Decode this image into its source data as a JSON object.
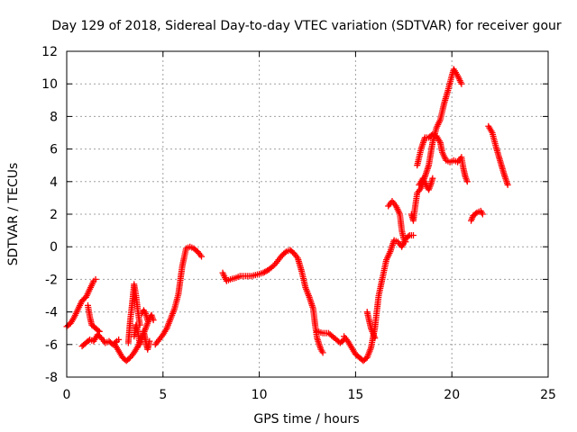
{
  "chart_data": {
    "type": "scatter",
    "title": "Day 129 of 2018, Sidereal Day-to-day VTEC variation (SDTVAR) for receiver gour",
    "xlabel": "GPS time / hours",
    "ylabel": "SDTVAR / TECUs",
    "xlim": [
      0,
      25
    ],
    "ylim": [
      -8,
      12
    ],
    "xticks": [
      0,
      5,
      10,
      15,
      20,
      25
    ],
    "yticks": [
      -8,
      -6,
      -4,
      -2,
      0,
      2,
      4,
      6,
      8,
      10,
      12
    ],
    "grid": true,
    "marker": "+",
    "color": "#ff0000",
    "series": [
      {
        "segments": [
          [
            [
              0,
              -4.9
            ],
            [
              0.2,
              -4.7
            ],
            [
              0.4,
              -4.3
            ],
            [
              0.6,
              -3.8
            ],
            [
              0.8,
              -3.3
            ],
            [
              1.0,
              -3.1
            ],
            [
              1.2,
              -2.6
            ],
            [
              1.4,
              -2.1
            ],
            [
              1.5,
              -2.0
            ]
          ],
          [
            [
              0.8,
              -6.1
            ],
            [
              1.0,
              -5.9
            ],
            [
              1.2,
              -5.7
            ],
            [
              1.4,
              -5.8
            ],
            [
              1.6,
              -5.4
            ],
            [
              1.8,
              -5.6
            ],
            [
              2.0,
              -5.9
            ],
            [
              2.2,
              -5.8
            ],
            [
              2.4,
              -6.0
            ],
            [
              2.6,
              -5.8
            ],
            [
              2.7,
              -5.7
            ]
          ],
          [
            [
              1.1,
              -3.6
            ],
            [
              1.2,
              -4.3
            ],
            [
              1.3,
              -4.8
            ],
            [
              1.5,
              -5.0
            ],
            [
              1.7,
              -5.2
            ]
          ],
          [
            [
              2.5,
              -6.0
            ],
            [
              2.7,
              -6.4
            ],
            [
              2.9,
              -6.8
            ],
            [
              3.1,
              -7.0
            ],
            [
              3.3,
              -6.8
            ],
            [
              3.5,
              -6.5
            ],
            [
              3.7,
              -6.1
            ],
            [
              3.9,
              -5.6
            ],
            [
              4.1,
              -5.0
            ],
            [
              4.3,
              -4.4
            ],
            [
              4.4,
              -4.2
            ]
          ],
          [
            [
              3.2,
              -5.9
            ],
            [
              3.3,
              -4.5
            ],
            [
              3.4,
              -3.5
            ],
            [
              3.5,
              -2.3
            ],
            [
              3.6,
              -3.0
            ],
            [
              3.7,
              -4.0
            ],
            [
              3.8,
              -4.8
            ]
          ],
          [
            [
              3.5,
              -5.5
            ],
            [
              3.6,
              -4.8
            ],
            [
              3.7,
              -5.3
            ],
            [
              3.8,
              -6.0
            ],
            [
              3.9,
              -5.6
            ],
            [
              4.0,
              -5.2
            ],
            [
              4.1,
              -5.8
            ],
            [
              4.2,
              -6.3
            ],
            [
              4.3,
              -5.8
            ]
          ],
          [
            [
              3.9,
              -4.1
            ],
            [
              4.0,
              -3.9
            ],
            [
              4.1,
              -4.1
            ],
            [
              4.2,
              -4.5
            ],
            [
              4.3,
              -4.4
            ],
            [
              4.4,
              -4.2
            ],
            [
              4.5,
              -4.5
            ]
          ],
          [
            [
              4.6,
              -6.0
            ],
            [
              4.8,
              -5.7
            ],
            [
              5.0,
              -5.4
            ],
            [
              5.2,
              -5.0
            ],
            [
              5.4,
              -4.4
            ],
            [
              5.6,
              -3.8
            ],
            [
              5.8,
              -2.9
            ],
            [
              6.0,
              -1.2
            ],
            [
              6.2,
              -0.1
            ],
            [
              6.4,
              0.0
            ],
            [
              6.6,
              -0.1
            ],
            [
              6.8,
              -0.3
            ],
            [
              7.0,
              -0.6
            ]
          ],
          [
            [
              8.1,
              -1.6
            ],
            [
              8.3,
              -2.1
            ],
            [
              8.5,
              -2.0
            ],
            [
              8.8,
              -1.9
            ],
            [
              9.0,
              -1.8
            ],
            [
              9.3,
              -1.8
            ],
            [
              9.6,
              -1.8
            ],
            [
              9.9,
              -1.7
            ],
            [
              10.2,
              -1.6
            ],
            [
              10.5,
              -1.4
            ],
            [
              10.8,
              -1.1
            ],
            [
              11.0,
              -0.8
            ],
            [
              11.2,
              -0.5
            ],
            [
              11.4,
              -0.3
            ],
            [
              11.6,
              -0.2
            ],
            [
              11.8,
              -0.4
            ],
            [
              12.0,
              -0.7
            ],
            [
              12.2,
              -1.5
            ],
            [
              12.4,
              -2.5
            ],
            [
              12.6,
              -3.1
            ],
            [
              12.8,
              -3.8
            ],
            [
              12.9,
              -4.8
            ],
            [
              13.0,
              -5.6
            ],
            [
              13.2,
              -6.3
            ],
            [
              13.3,
              -6.5
            ]
          ],
          [
            [
              13.0,
              -5.2
            ],
            [
              13.3,
              -5.3
            ],
            [
              13.6,
              -5.3
            ],
            [
              13.9,
              -5.6
            ],
            [
              14.2,
              -5.9
            ],
            [
              14.4,
              -5.7
            ]
          ],
          [
            [
              14.4,
              -5.5
            ],
            [
              14.6,
              -5.8
            ],
            [
              14.8,
              -6.2
            ],
            [
              15.0,
              -6.6
            ],
            [
              15.2,
              -6.8
            ],
            [
              15.4,
              -7.0
            ],
            [
              15.6,
              -6.8
            ],
            [
              15.8,
              -6.2
            ],
            [
              16.0,
              -5.0
            ],
            [
              16.2,
              -3.0
            ],
            [
              16.4,
              -1.9
            ],
            [
              16.6,
              -0.8
            ],
            [
              16.8,
              -0.3
            ],
            [
              17.0,
              0.4
            ],
            [
              17.2,
              0.3
            ],
            [
              17.4,
              0.0
            ],
            [
              17.6,
              0.5
            ],
            [
              17.8,
              0.7
            ],
            [
              18.0,
              0.7
            ]
          ],
          [
            [
              15.6,
              -4.0
            ],
            [
              15.7,
              -4.5
            ],
            [
              15.8,
              -5.0
            ],
            [
              15.9,
              -5.3
            ],
            [
              16.0,
              -5.6
            ]
          ],
          [
            [
              16.7,
              2.5
            ],
            [
              16.9,
              2.8
            ],
            [
              17.1,
              2.5
            ],
            [
              17.3,
              2.0
            ],
            [
              17.4,
              1.0
            ],
            [
              17.5,
              0.5
            ],
            [
              17.6,
              0.3
            ]
          ],
          [
            [
              17.9,
              2.0
            ],
            [
              18.0,
              1.6
            ],
            [
              18.1,
              2.5
            ],
            [
              18.2,
              3.3
            ],
            [
              18.4,
              3.6
            ],
            [
              18.6,
              4.3
            ],
            [
              18.8,
              5.0
            ],
            [
              19.0,
              6.4
            ],
            [
              19.2,
              7.3
            ],
            [
              19.4,
              7.8
            ],
            [
              19.6,
              8.8
            ],
            [
              19.8,
              9.6
            ],
            [
              20.0,
              10.5
            ],
            [
              20.1,
              10.9
            ],
            [
              20.3,
              10.5
            ],
            [
              20.5,
              10.0
            ]
          ],
          [
            [
              18.2,
              5.0
            ],
            [
              18.4,
              6.0
            ],
            [
              18.6,
              6.7
            ],
            [
              18.8,
              6.7
            ],
            [
              19.0,
              6.9
            ],
            [
              19.2,
              6.8
            ],
            [
              19.4,
              6.4
            ],
            [
              19.5,
              5.8
            ],
            [
              19.7,
              5.3
            ],
            [
              19.9,
              5.2
            ],
            [
              20.1,
              5.3
            ],
            [
              20.3,
              5.2
            ],
            [
              20.5,
              5.5
            ],
            [
              20.6,
              4.8
            ],
            [
              20.7,
              4.3
            ],
            [
              20.8,
              4.0
            ]
          ],
          [
            [
              18.3,
              3.8
            ],
            [
              18.5,
              4.2
            ],
            [
              18.7,
              3.7
            ],
            [
              18.8,
              3.5
            ],
            [
              18.9,
              3.8
            ],
            [
              19.0,
              4.2
            ]
          ],
          [
            [
              21.0,
              1.6
            ],
            [
              21.1,
              1.9
            ],
            [
              21.3,
              2.1
            ],
            [
              21.5,
              2.2
            ],
            [
              21.6,
              2.0
            ]
          ],
          [
            [
              21.9,
              7.4
            ],
            [
              22.1,
              7.0
            ],
            [
              22.3,
              6.1
            ],
            [
              22.5,
              5.3
            ],
            [
              22.7,
              4.5
            ],
            [
              22.9,
              3.8
            ]
          ]
        ]
      }
    ]
  }
}
